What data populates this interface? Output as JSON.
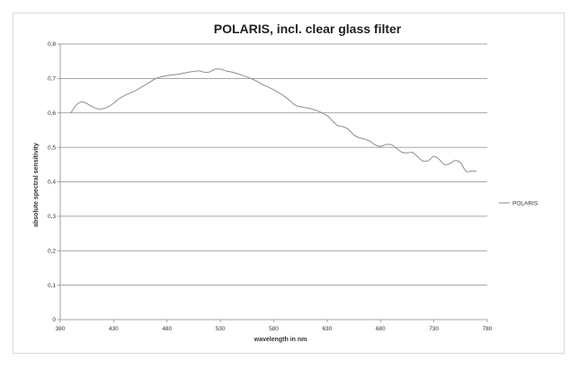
{
  "chart_data": {
    "type": "line",
    "title": "POLARIS, incl. clear glass filter",
    "xlabel": "wavelength in nm",
    "ylabel": "absolute spectral sensitivity",
    "xlim": [
      380,
      780
    ],
    "ylim": [
      0,
      0.8
    ],
    "x_ticks": [
      "380",
      "430",
      "480",
      "530",
      "580",
      "630",
      "680",
      "730",
      "780"
    ],
    "y_ticks": [
      "0",
      "0,1",
      "0,2",
      "0,3",
      "0,4",
      "0,5",
      "0,6",
      "0,7",
      "0,8"
    ],
    "grid": "horizontal",
    "legend": "right",
    "series": [
      {
        "name": "POLARIS",
        "color": "#8c8c8c",
        "x": [
          390,
          395,
          400,
          405,
          410,
          415,
          420,
          425,
          430,
          435,
          440,
          450,
          460,
          470,
          480,
          490,
          500,
          510,
          515,
          520,
          525,
          530,
          535,
          540,
          550,
          560,
          570,
          580,
          590,
          600,
          605,
          610,
          620,
          630,
          635,
          640,
          645,
          650,
          655,
          660,
          665,
          670,
          675,
          680,
          685,
          690,
          695,
          700,
          705,
          710,
          715,
          720,
          725,
          730,
          735,
          740,
          745,
          750,
          755,
          760,
          765,
          770
        ],
        "values": [
          0.6,
          0.623,
          0.632,
          0.627,
          0.618,
          0.612,
          0.612,
          0.618,
          0.628,
          0.641,
          0.65,
          0.664,
          0.682,
          0.7,
          0.708,
          0.712,
          0.718,
          0.722,
          0.718,
          0.719,
          0.727,
          0.727,
          0.722,
          0.719,
          0.71,
          0.698,
          0.682,
          0.667,
          0.648,
          0.623,
          0.618,
          0.615,
          0.607,
          0.592,
          0.577,
          0.563,
          0.56,
          0.552,
          0.536,
          0.528,
          0.524,
          0.518,
          0.507,
          0.503,
          0.508,
          0.508,
          0.497,
          0.486,
          0.484,
          0.485,
          0.472,
          0.46,
          0.462,
          0.474,
          0.465,
          0.45,
          0.453,
          0.462,
          0.455,
          0.431,
          0.431,
          0.431
        ]
      }
    ]
  }
}
